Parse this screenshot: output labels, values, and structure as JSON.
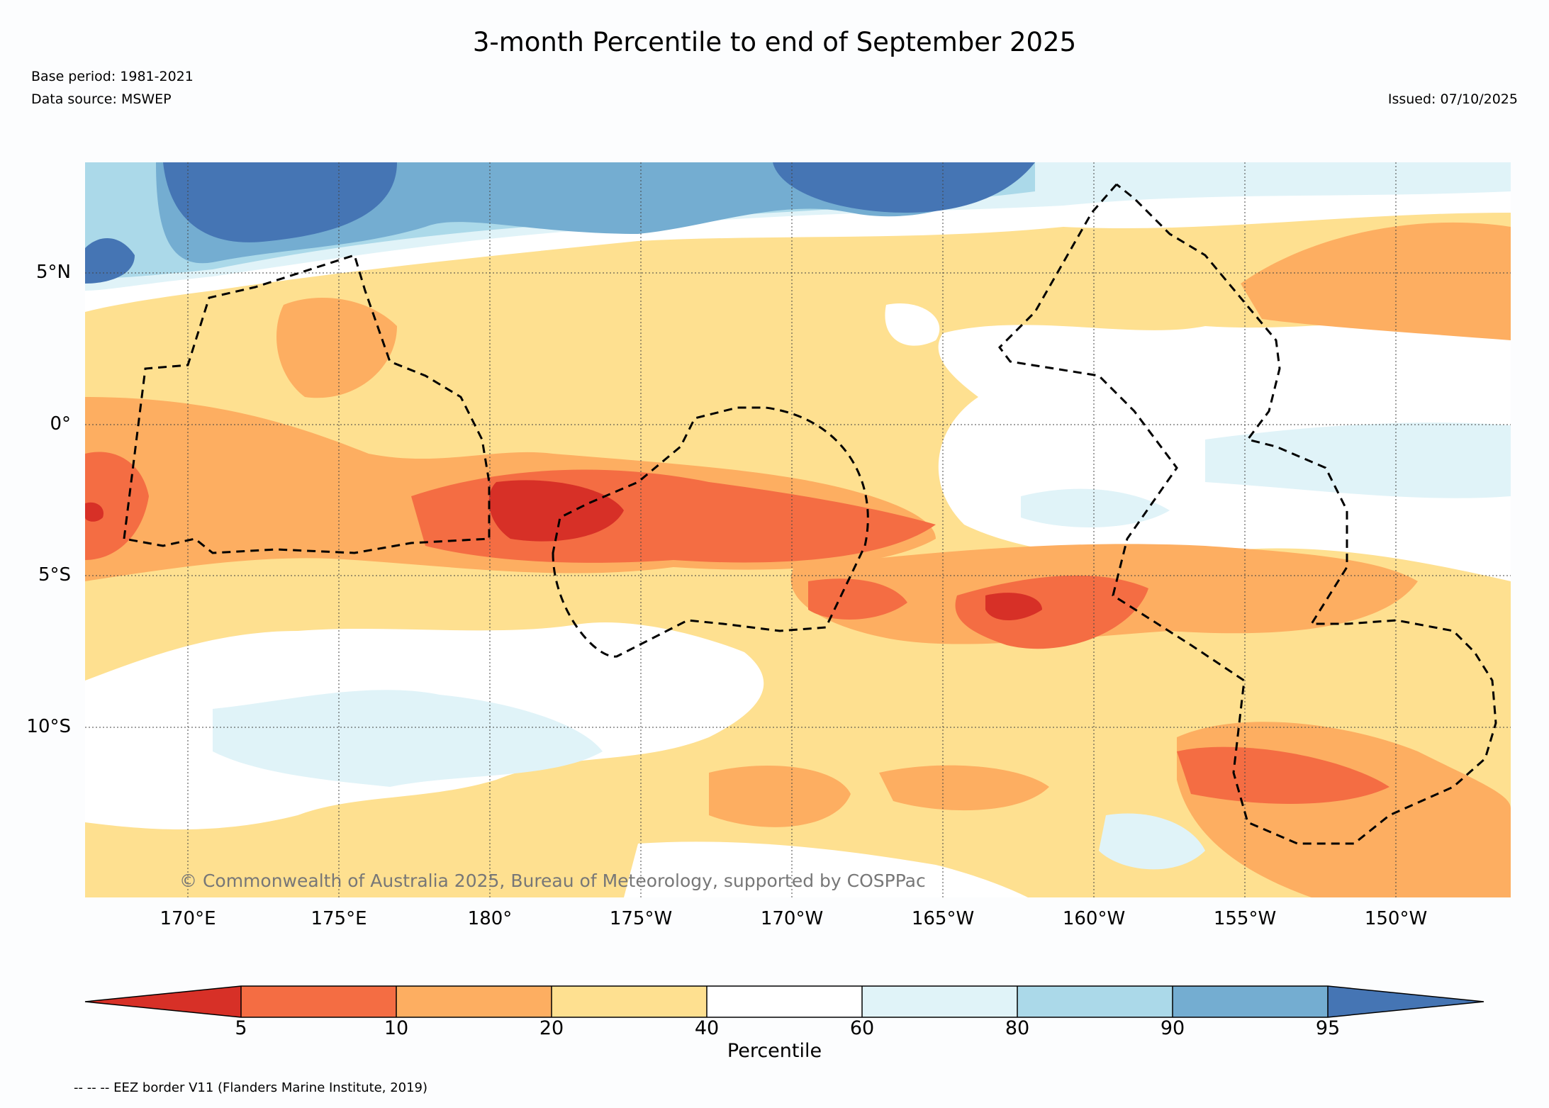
{
  "title": "3-month Percentile to end of September 2025",
  "meta": {
    "base_period": "Base period: 1981-2021",
    "data_source": "Data source: MSWEP",
    "issued": "Issued: 07/10/2025"
  },
  "map": {
    "lat_labels": [
      "5°N",
      "0°",
      "5°S",
      "10°S"
    ],
    "lon_labels": [
      "170°E",
      "175°E",
      "180°",
      "175°W",
      "170°W",
      "165°W",
      "160°W",
      "155°W",
      "150°W"
    ],
    "credit": "© Commonwealth of Australia 2025, Bureau of Meteorology, supported by COSPPac",
    "legend_note": "-- -- -- EEZ border V11 (Flanders Marine Institute, 2019)"
  },
  "colorbar": {
    "label": "Percentile",
    "ticks": [
      "5",
      "10",
      "20",
      "40",
      "60",
      "80",
      "90",
      "95"
    ],
    "colors": [
      "#d73027",
      "#f46d43",
      "#fdae61",
      "#fee090",
      "#ffffff",
      "#e0f3f8",
      "#abd9e9",
      "#74add1",
      "#4575b4"
    ]
  }
}
